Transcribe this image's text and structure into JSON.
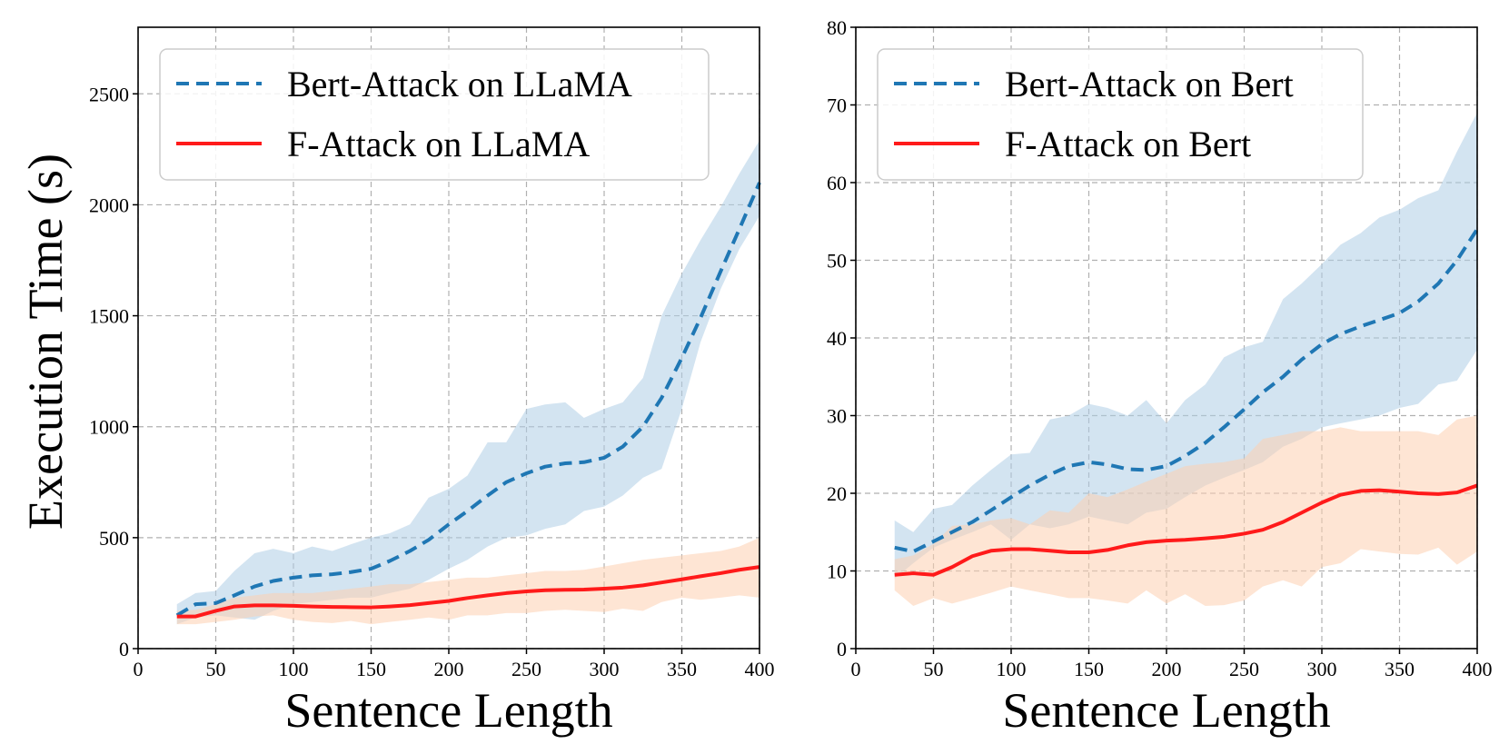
{
  "y_axis_label": "Execution Time (s)",
  "chart_data": [
    {
      "type": "line",
      "title": "",
      "xlabel": "Sentence Length",
      "ylabel": "Execution Time (s)",
      "xlim": [
        0,
        400
      ],
      "ylim": [
        0,
        2800
      ],
      "xticks": [
        0,
        50,
        100,
        150,
        200,
        250,
        300,
        350,
        400
      ],
      "yticks": [
        0,
        500,
        1000,
        1500,
        2000,
        2500
      ],
      "grid": true,
      "legend_position": "top-left",
      "x": [
        25,
        37,
        50,
        62,
        75,
        87,
        100,
        112,
        125,
        137,
        150,
        162,
        175,
        187,
        200,
        212,
        225,
        237,
        250,
        262,
        275,
        287,
        300,
        312,
        325,
        337,
        350,
        362,
        375,
        387,
        400
      ],
      "series": [
        {
          "name": "Bert-Attack on LLaMA",
          "color": "#1f77b4",
          "style": "dashed",
          "band_color": "#aecde6",
          "values": [
            150,
            200,
            205,
            240,
            280,
            305,
            320,
            330,
            335,
            345,
            360,
            395,
            440,
            490,
            560,
            620,
            690,
            750,
            790,
            820,
            835,
            840,
            860,
            910,
            1000,
            1130,
            1310,
            1490,
            1700,
            1890,
            2100
          ],
          "lower": [
            110,
            140,
            150,
            140,
            130,
            170,
            200,
            210,
            220,
            230,
            230,
            250,
            270,
            310,
            360,
            400,
            460,
            500,
            510,
            540,
            560,
            620,
            640,
            690,
            770,
            810,
            1080,
            1380,
            1620,
            1800,
            1950
          ],
          "upper": [
            200,
            250,
            260,
            350,
            430,
            450,
            430,
            460,
            440,
            470,
            500,
            520,
            560,
            680,
            720,
            780,
            930,
            930,
            1080,
            1100,
            1110,
            1040,
            1080,
            1110,
            1220,
            1500,
            1690,
            1840,
            1990,
            2140,
            2290
          ]
        },
        {
          "name": "F-Attack on LLaMA",
          "color": "#ff1a1a",
          "style": "solid",
          "band_color": "#fdd0b0",
          "values": [
            145,
            145,
            170,
            190,
            195,
            195,
            193,
            190,
            188,
            187,
            186,
            190,
            196,
            205,
            215,
            228,
            240,
            250,
            258,
            263,
            265,
            266,
            270,
            275,
            285,
            298,
            312,
            326,
            340,
            355,
            368
          ],
          "lower": [
            110,
            110,
            120,
            130,
            145,
            150,
            130,
            120,
            115,
            125,
            110,
            120,
            130,
            140,
            130,
            150,
            150,
            160,
            160,
            170,
            175,
            170,
            165,
            180,
            170,
            210,
            230,
            220,
            230,
            240,
            230
          ],
          "upper": [
            170,
            175,
            200,
            230,
            240,
            250,
            250,
            250,
            260,
            270,
            280,
            290,
            290,
            300,
            310,
            320,
            320,
            330,
            340,
            350,
            350,
            355,
            370,
            385,
            400,
            410,
            420,
            430,
            440,
            460,
            500
          ]
        }
      ]
    },
    {
      "type": "line",
      "title": "",
      "xlabel": "Sentence Length",
      "ylabel": "",
      "xlim": [
        0,
        400
      ],
      "ylim": [
        0,
        80
      ],
      "xticks": [
        0,
        50,
        100,
        150,
        200,
        250,
        300,
        350,
        400
      ],
      "yticks": [
        0,
        10,
        20,
        30,
        40,
        50,
        60,
        70,
        80
      ],
      "grid": true,
      "legend_position": "top-left",
      "x": [
        25,
        37,
        50,
        62,
        75,
        87,
        100,
        112,
        125,
        137,
        150,
        162,
        175,
        187,
        200,
        212,
        225,
        237,
        250,
        262,
        275,
        287,
        300,
        312,
        325,
        337,
        350,
        362,
        375,
        387,
        400
      ],
      "series": [
        {
          "name": "Bert-Attack on Bert",
          "color": "#1f77b4",
          "style": "dashed",
          "band_color": "#aecde6",
          "values": [
            13,
            12.5,
            13.8,
            15,
            16.3,
            17.8,
            19.5,
            21,
            22.4,
            23.5,
            24,
            23.7,
            23.1,
            23,
            23.5,
            24.8,
            26.5,
            28.5,
            30.8,
            33,
            35,
            37.2,
            39.2,
            40.5,
            41.5,
            42.3,
            43.2,
            44.7,
            47,
            50,
            54
          ],
          "lower": [
            9,
            11,
            13,
            14,
            15,
            16,
            14,
            16,
            15.5,
            16,
            17,
            16.5,
            16,
            17.5,
            18,
            19.5,
            21,
            22,
            23,
            24,
            26,
            27,
            28.5,
            29,
            29.5,
            30,
            31,
            31.5,
            34,
            34.5,
            38.5
          ],
          "upper": [
            16.5,
            15,
            18,
            18.5,
            21,
            23,
            25,
            25.2,
            29.5,
            30,
            31.5,
            31,
            30,
            32,
            29,
            32,
            34,
            37.5,
            38.8,
            39.5,
            45,
            47,
            49.5,
            52,
            53.5,
            55.5,
            56.5,
            58,
            59,
            64,
            69
          ]
        },
        {
          "name": "F-Attack on Bert",
          "color": "#ff1a1a",
          "style": "solid",
          "band_color": "#fdd0b0",
          "values": [
            9.5,
            9.7,
            9.5,
            10.5,
            11.9,
            12.6,
            12.8,
            12.8,
            12.6,
            12.4,
            12.4,
            12.7,
            13.3,
            13.7,
            13.9,
            14.0,
            14.2,
            14.4,
            14.8,
            15.3,
            16.3,
            17.5,
            18.8,
            19.8,
            20.3,
            20.4,
            20.2,
            20.0,
            19.9,
            20.1,
            21.0
          ],
          "lower": [
            7.5,
            5.5,
            6.5,
            5.8,
            6.5,
            7.2,
            8,
            7.5,
            7,
            6.5,
            6.5,
            6.2,
            5.8,
            7.5,
            5.8,
            7,
            5.5,
            5.6,
            6.2,
            8,
            8.8,
            8,
            10.5,
            11,
            12.8,
            12.5,
            12.2,
            12.1,
            13,
            10.8,
            12.5
          ],
          "upper": [
            11.5,
            12,
            13.5,
            15.8,
            16,
            16.5,
            16.8,
            16,
            17.8,
            17.5,
            20,
            19.5,
            20.5,
            21.5,
            22.5,
            23.5,
            23.8,
            24,
            24.5,
            27,
            27.5,
            28,
            28,
            28.5,
            28,
            28,
            28,
            28,
            27.5,
            29.5,
            30
          ]
        }
      ]
    }
  ]
}
